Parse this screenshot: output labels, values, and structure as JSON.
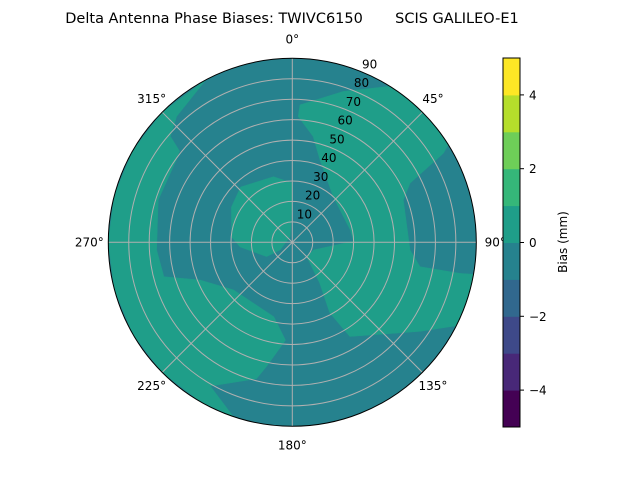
{
  "chart_data": {
    "type": "polar-contour",
    "title": "Delta Antenna Phase Biases: TWIVC6150       SCIS GALILEO-E1",
    "angular_ticks": [
      "0°",
      "45°",
      "90°",
      "135°",
      "180°",
      "225°",
      "270°",
      "315°"
    ],
    "angular_tick_values": [
      0,
      45,
      90,
      135,
      180,
      225,
      270,
      315
    ],
    "radial_ticks": [
      "10",
      "20",
      "30",
      "40",
      "50",
      "60",
      "70",
      "80",
      "90"
    ],
    "radial_tick_values": [
      10,
      20,
      30,
      40,
      50,
      60,
      70,
      80,
      90
    ],
    "radial_range": [
      0,
      90
    ],
    "theta_zero": "top",
    "theta_direction": "clockwise",
    "grid": true,
    "colorbar": {
      "label": "Bias (mm)",
      "range": [
        -5,
        5
      ],
      "levels": [
        -5,
        -4,
        -3,
        -2,
        -1,
        0,
        1,
        2,
        3,
        4,
        5
      ],
      "tick_values": [
        -4,
        -2,
        0,
        2,
        4
      ],
      "tick_labels": [
        "−4",
        "−2",
        "0",
        "2",
        "4"
      ],
      "colormap": "viridis",
      "colors": [
        "#440154",
        "#482878",
        "#3e4989",
        "#31688e",
        "#26828e",
        "#1f9e89",
        "#35b779",
        "#6ece58",
        "#b5de2b",
        "#fde725"
      ]
    },
    "background_level": [
      -1,
      0
    ],
    "regions": [
      {
        "level": [
          0,
          1
        ],
        "points_az_zen": [
          [
            2.7,
            61.6
          ],
          [
            3.2,
            67.3
          ],
          [
            18.7,
            77.9
          ],
          [
            32,
            90
          ],
          [
            40,
            90
          ],
          [
            50,
            90
          ],
          [
            58,
            90
          ],
          [
            59.5,
            85.8
          ],
          [
            63.4,
            64.4
          ],
          [
            69.1,
            58.1
          ],
          [
            93.7,
            57.7
          ],
          [
            100.8,
            63.6
          ],
          [
            100.5,
            83.4
          ],
          [
            100,
            90
          ],
          [
            108,
            90
          ],
          [
            117,
            90
          ],
          [
            125,
            76
          ],
          [
            148.6,
            54
          ],
          [
            152,
            39
          ],
          [
            146,
            24
          ],
          [
            135,
            10
          ],
          [
            110,
            11
          ],
          [
            89,
            30
          ],
          [
            78,
            29
          ],
          [
            42,
            30
          ],
          [
            18.6,
            42.5
          ],
          [
            11.2,
            52.7
          ]
        ]
      },
      {
        "level": [
          0,
          1
        ],
        "points_az_zen": [
          [
            0,
            29
          ],
          [
            344,
            33.4
          ],
          [
            317,
            37
          ],
          [
            300,
            34.4
          ],
          [
            275,
            29.8
          ],
          [
            265,
            25.7
          ],
          [
            241,
            14.4
          ],
          [
            238,
            7
          ],
          [
            340,
            3
          ],
          [
            0,
            20.7
          ]
        ]
      },
      {
        "level": [
          0,
          1
        ],
        "points_az_zen": [
          [
            332,
            90
          ],
          [
            317.4,
            83.6
          ],
          [
            311,
            79
          ],
          [
            309,
            71
          ],
          [
            305,
            69.5
          ],
          [
            287.5,
            68.8
          ],
          [
            266.8,
            66.5
          ],
          [
            255,
            65
          ],
          [
            247.8,
            48.8
          ],
          [
            231,
            37
          ],
          [
            194,
            37.5
          ],
          [
            184,
            48
          ],
          [
            191.7,
            62
          ],
          [
            194.7,
            69
          ],
          [
            209.7,
            81
          ],
          [
            198.7,
            90
          ],
          [
            210,
            90
          ],
          [
            225,
            90
          ],
          [
            240,
            90
          ],
          [
            255,
            90
          ],
          [
            270,
            90
          ],
          [
            285,
            90
          ],
          [
            300,
            90
          ],
          [
            315,
            90
          ]
        ]
      }
    ]
  }
}
